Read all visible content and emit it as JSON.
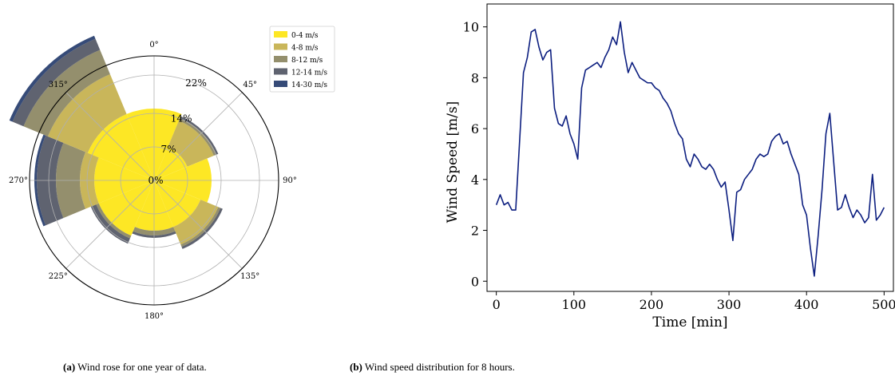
{
  "captions": {
    "a_tag": "(a)",
    "a_text": " Wind rose for one year of data.",
    "b_tag": "(b)",
    "b_text": " Wind speed distribution for 8 hours."
  },
  "chart_data": [
    {
      "type": "bar",
      "subtype": "polar-stacked-windrose",
      "directions_deg": [
        0,
        45,
        90,
        135,
        180,
        225,
        270,
        315
      ],
      "direction_labels": [
        "0°",
        "45°",
        "90°",
        "135°",
        "180°",
        "225°",
        "270°",
        "315°"
      ],
      "radial_ticks": [
        "0%",
        "7%",
        "14%",
        "22%"
      ],
      "radial_tick_values": [
        0,
        7,
        14,
        22
      ],
      "rmax": 26,
      "legend_placement": "top-right",
      "grid": true,
      "series": [
        {
          "name": "0-4 m/s",
          "color": "#fde725",
          "values": [
            15,
            7.5,
            12,
            10.5,
            10.5,
            12.5,
            12.5,
            15
          ]
        },
        {
          "name": "4-8 m/s",
          "color": "#c9b65a",
          "values": [
            0,
            6,
            0,
            4,
            0,
            0,
            3,
            9
          ]
        },
        {
          "name": "8-12 m/s",
          "color": "#948f6d",
          "values": [
            0,
            0.6,
            0,
            0.5,
            1,
            0.6,
            5,
            5.5
          ]
        },
        {
          "name": "12-14 m/s",
          "color": "#5f6370",
          "values": [
            0,
            0.4,
            0,
            0.5,
            0.5,
            1.2,
            4,
            2.5
          ]
        },
        {
          "name": "14-30 m/s",
          "color": "#364b78",
          "values": [
            0,
            0,
            0,
            0,
            0,
            0,
            0.5,
            0.7
          ]
        }
      ]
    },
    {
      "type": "line",
      "xlabel": "Time [min]",
      "ylabel": "Wind Speed [m/s]",
      "xlim": [
        -12,
        512
      ],
      "ylim": [
        -0.4,
        10.9
      ],
      "xticks": [
        0,
        100,
        200,
        300,
        400,
        500
      ],
      "yticks": [
        0,
        2,
        4,
        6,
        8,
        10
      ],
      "grid": false,
      "color": "#0d1f80",
      "x": [
        0,
        5,
        10,
        15,
        20,
        25,
        30,
        35,
        40,
        45,
        50,
        55,
        60,
        65,
        70,
        75,
        80,
        85,
        90,
        95,
        100,
        105,
        110,
        115,
        120,
        125,
        130,
        135,
        140,
        145,
        150,
        155,
        160,
        165,
        170,
        175,
        180,
        185,
        190,
        195,
        200,
        205,
        210,
        215,
        220,
        225,
        230,
        235,
        240,
        245,
        250,
        255,
        260,
        265,
        270,
        275,
        280,
        285,
        290,
        295,
        300,
        305,
        310,
        315,
        320,
        325,
        330,
        335,
        340,
        345,
        350,
        355,
        360,
        365,
        370,
        375,
        380,
        385,
        390,
        395,
        400,
        405,
        410,
        415,
        420,
        425,
        430,
        435,
        440,
        445,
        450,
        455,
        460,
        465,
        470,
        475,
        480,
        485,
        490,
        495,
        500
      ],
      "y": [
        3.0,
        3.4,
        3.0,
        3.1,
        2.8,
        2.8,
        5.5,
        8.2,
        8.8,
        9.8,
        9.9,
        9.2,
        8.7,
        9.0,
        9.1,
        6.8,
        6.2,
        6.1,
        6.5,
        5.8,
        5.4,
        4.8,
        7.6,
        8.3,
        8.4,
        8.5,
        8.6,
        8.4,
        8.8,
        9.1,
        9.6,
        9.3,
        10.2,
        9.0,
        8.2,
        8.6,
        8.3,
        8.0,
        7.9,
        7.8,
        7.8,
        7.6,
        7.5,
        7.2,
        7.0,
        6.7,
        6.2,
        5.8,
        5.6,
        4.8,
        4.5,
        5.0,
        4.8,
        4.5,
        4.4,
        4.6,
        4.4,
        4.0,
        3.7,
        3.9,
        2.8,
        1.6,
        3.5,
        3.6,
        4.0,
        4.2,
        4.4,
        4.8,
        5.0,
        4.9,
        5.0,
        5.5,
        5.7,
        5.8,
        5.4,
        5.5,
        5.0,
        4.6,
        4.2,
        3.0,
        2.6,
        1.3,
        0.2,
        1.8,
        3.6,
        5.8,
        6.6,
        4.7,
        2.8,
        2.9,
        3.4,
        2.9,
        2.5,
        2.8,
        2.6,
        2.3,
        2.5,
        4.2,
        2.4,
        2.6,
        2.9
      ]
    }
  ]
}
